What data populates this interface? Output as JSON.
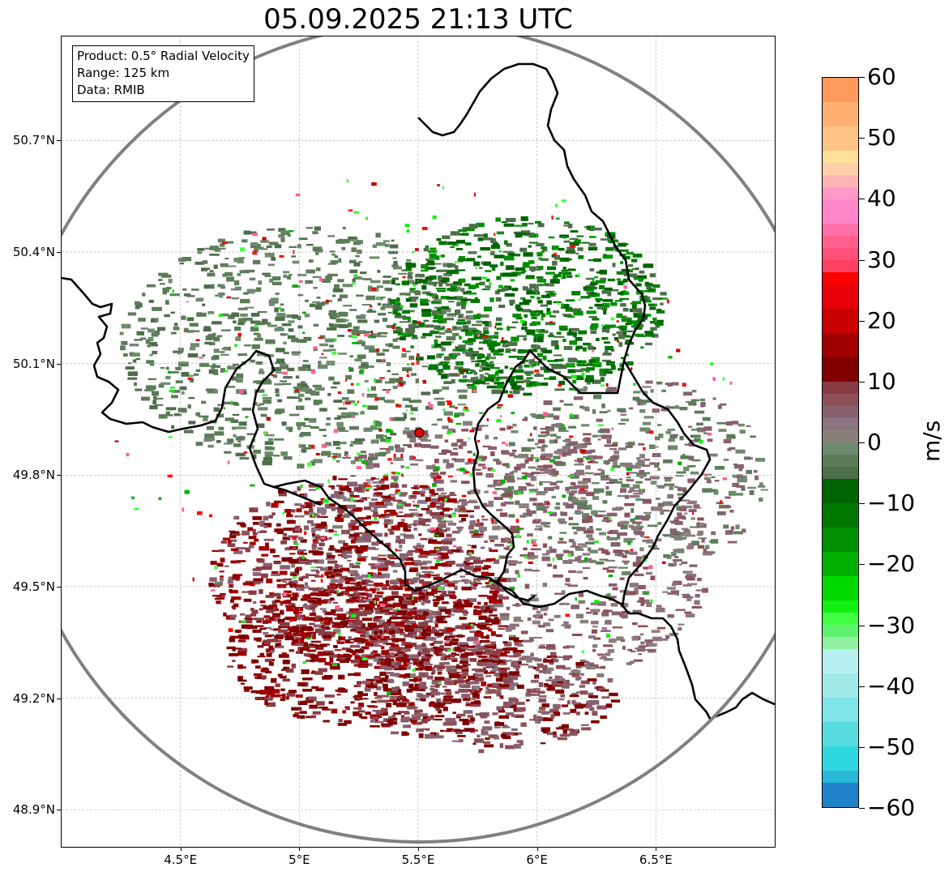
{
  "title": "05.09.2025 21:13 UTC",
  "info_box": {
    "product": "Product: 0.5° Radial Velocity",
    "range": "Range: 125 km",
    "source": "Data: RMIB"
  },
  "map": {
    "lon_range": [
      4.0,
      7.0
    ],
    "lat_range": [
      48.8,
      50.98
    ],
    "lon_ticks": [
      {
        "value": 4.5,
        "label": "4.5°E"
      },
      {
        "value": 5.0,
        "label": "5°E"
      },
      {
        "value": 5.5,
        "label": "5.5°E"
      },
      {
        "value": 6.0,
        "label": "6°E"
      },
      {
        "value": 6.5,
        "label": "6.5°E"
      }
    ],
    "lat_ticks": [
      {
        "value": 50.7,
        "label": "50.7°N"
      },
      {
        "value": 50.4,
        "label": "50.4°N"
      },
      {
        "value": 50.1,
        "label": "50.1°N"
      },
      {
        "value": 49.8,
        "label": "49.8°N"
      },
      {
        "value": 49.5,
        "label": "49.5°N"
      },
      {
        "value": 49.2,
        "label": "49.2°N"
      },
      {
        "value": 48.9,
        "label": "48.9°N"
      }
    ],
    "radar_site": {
      "lon": 5.505,
      "lat": 49.914,
      "color": "#e00000"
    },
    "range_ring_color": "#808080",
    "gridlines": true,
    "borders_color": "#000000"
  },
  "colorbar": {
    "unit": "m/s",
    "min": -60,
    "max": 60,
    "ticks": [
      {
        "value": 60,
        "label": "60"
      },
      {
        "value": 50,
        "label": "50"
      },
      {
        "value": 40,
        "label": "40"
      },
      {
        "value": 30,
        "label": "30"
      },
      {
        "value": 20,
        "label": "20"
      },
      {
        "value": 10,
        "label": "10"
      },
      {
        "value": 0,
        "label": "0"
      },
      {
        "value": -10,
        "label": "−10"
      },
      {
        "value": -20,
        "label": "−20"
      },
      {
        "value": -30,
        "label": "−30"
      },
      {
        "value": -40,
        "label": "−40"
      },
      {
        "value": -50,
        "label": "−50"
      },
      {
        "value": -60,
        "label": "−60"
      }
    ],
    "bands": [
      {
        "from": 56,
        "to": 60,
        "color": "#ff9a5c"
      },
      {
        "from": 52,
        "to": 56,
        "color": "#ffb070"
      },
      {
        "from": 48,
        "to": 52,
        "color": "#ffc488"
      },
      {
        "from": 46,
        "to": 48,
        "color": "#ffe09a"
      },
      {
        "from": 44,
        "to": 46,
        "color": "#ffd0a8"
      },
      {
        "from": 42,
        "to": 44,
        "color": "#ffb4b4"
      },
      {
        "from": 40,
        "to": 42,
        "color": "#ff9ac8"
      },
      {
        "from": 36,
        "to": 40,
        "color": "#ff86c8"
      },
      {
        "from": 34,
        "to": 36,
        "color": "#ff70a8"
      },
      {
        "from": 32,
        "to": 34,
        "color": "#ff6090"
      },
      {
        "from": 30,
        "to": 32,
        "color": "#ff5078"
      },
      {
        "from": 28,
        "to": 30,
        "color": "#ff4060"
      },
      {
        "from": 26,
        "to": 28,
        "color": "#ff0000"
      },
      {
        "from": 22,
        "to": 26,
        "color": "#e80008"
      },
      {
        "from": 18,
        "to": 22,
        "color": "#c80000"
      },
      {
        "from": 14,
        "to": 18,
        "color": "#a00000"
      },
      {
        "from": 10,
        "to": 14,
        "color": "#800000"
      },
      {
        "from": 8,
        "to": 10,
        "color": "#8a3c44"
      },
      {
        "from": 6,
        "to": 8,
        "color": "#8c5058"
      },
      {
        "from": 4,
        "to": 6,
        "color": "#886070"
      },
      {
        "from": 2,
        "to": 4,
        "color": "#8a7480"
      },
      {
        "from": 0,
        "to": 2,
        "color": "#888078"
      },
      {
        "from": -2,
        "to": 0,
        "color": "#6e8a6e"
      },
      {
        "from": -4,
        "to": -2,
        "color": "#5c7c58"
      },
      {
        "from": -6,
        "to": -4,
        "color": "#4e6e4a"
      },
      {
        "from": -10,
        "to": -6,
        "color": "#006400"
      },
      {
        "from": -14,
        "to": -10,
        "color": "#007800"
      },
      {
        "from": -18,
        "to": -14,
        "color": "#009000"
      },
      {
        "from": -22,
        "to": -18,
        "color": "#00b000"
      },
      {
        "from": -26,
        "to": -22,
        "color": "#00d800"
      },
      {
        "from": -28,
        "to": -26,
        "color": "#10f010"
      },
      {
        "from": -30,
        "to": -28,
        "color": "#40ff40"
      },
      {
        "from": -32,
        "to": -30,
        "color": "#60f070"
      },
      {
        "from": -34,
        "to": -32,
        "color": "#90f0a0"
      },
      {
        "from": -38,
        "to": -34,
        "color": "#b8f0f0"
      },
      {
        "from": -42,
        "to": -38,
        "color": "#a0eaea"
      },
      {
        "from": -46,
        "to": -42,
        "color": "#80e4e8"
      },
      {
        "from": -50,
        "to": -46,
        "color": "#58dce0"
      },
      {
        "from": -54,
        "to": -50,
        "color": "#30d8e0"
      },
      {
        "from": -56,
        "to": -54,
        "color": "#28b8d8"
      },
      {
        "from": -60,
        "to": -56,
        "color": "#2080c8"
      }
    ]
  }
}
